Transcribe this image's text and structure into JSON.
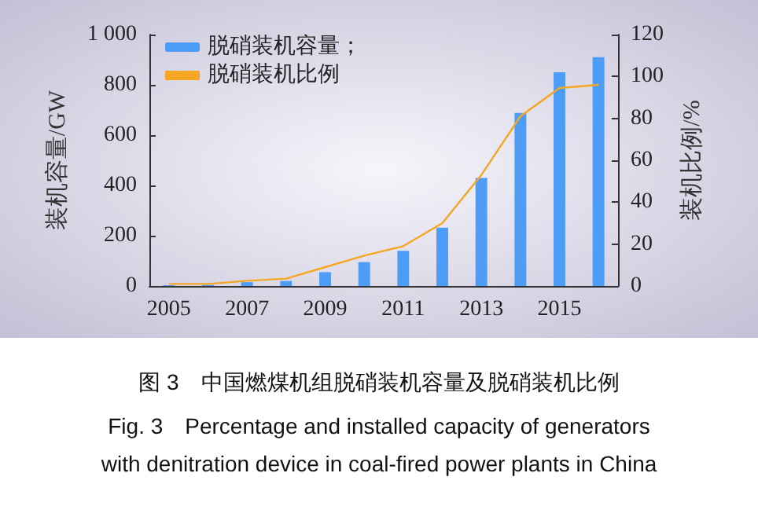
{
  "chart_data": {
    "type": "bar",
    "categories": [
      "2005",
      null,
      "2007",
      null,
      "2009",
      null,
      "2011",
      null,
      "2013",
      null,
      "2015",
      null
    ],
    "series": [
      {
        "name": "脱硝装机容量；",
        "color": "#4d9cf5",
        "values": [
          3,
          4,
          15,
          20,
          55,
          95,
          140,
          232,
          430,
          688,
          850,
          910
        ]
      },
      {
        "name": "脱硝装机比例",
        "type": "line",
        "axis": "y2",
        "color": "#f5a623",
        "values": [
          1,
          1,
          2.5,
          3.5,
          9,
          14.5,
          19,
          30,
          53,
          81,
          94.5,
          96
        ]
      }
    ],
    "ylabel": "装机容量/GW",
    "y2label": "装机比例/%",
    "ylim": [
      0,
      1000
    ],
    "yticks": [
      0,
      200,
      400,
      600,
      800,
      {
        "value": 1000,
        "label": "1 000"
      }
    ],
    "y2lim": [
      0,
      120
    ],
    "y2ticks": [
      0,
      20,
      40,
      60,
      80,
      100,
      120
    ],
    "legend": "top left",
    "grid": false,
    "marker": "none",
    "line_style": "solid",
    "annotations": [
      "图 3　中国燃煤机组脱硝装机容量及脱硝装机比例",
      "Fig. 3　Percentage and installed capacity of generators",
      "with denitration device in coal-fired power plants in China"
    ]
  }
}
